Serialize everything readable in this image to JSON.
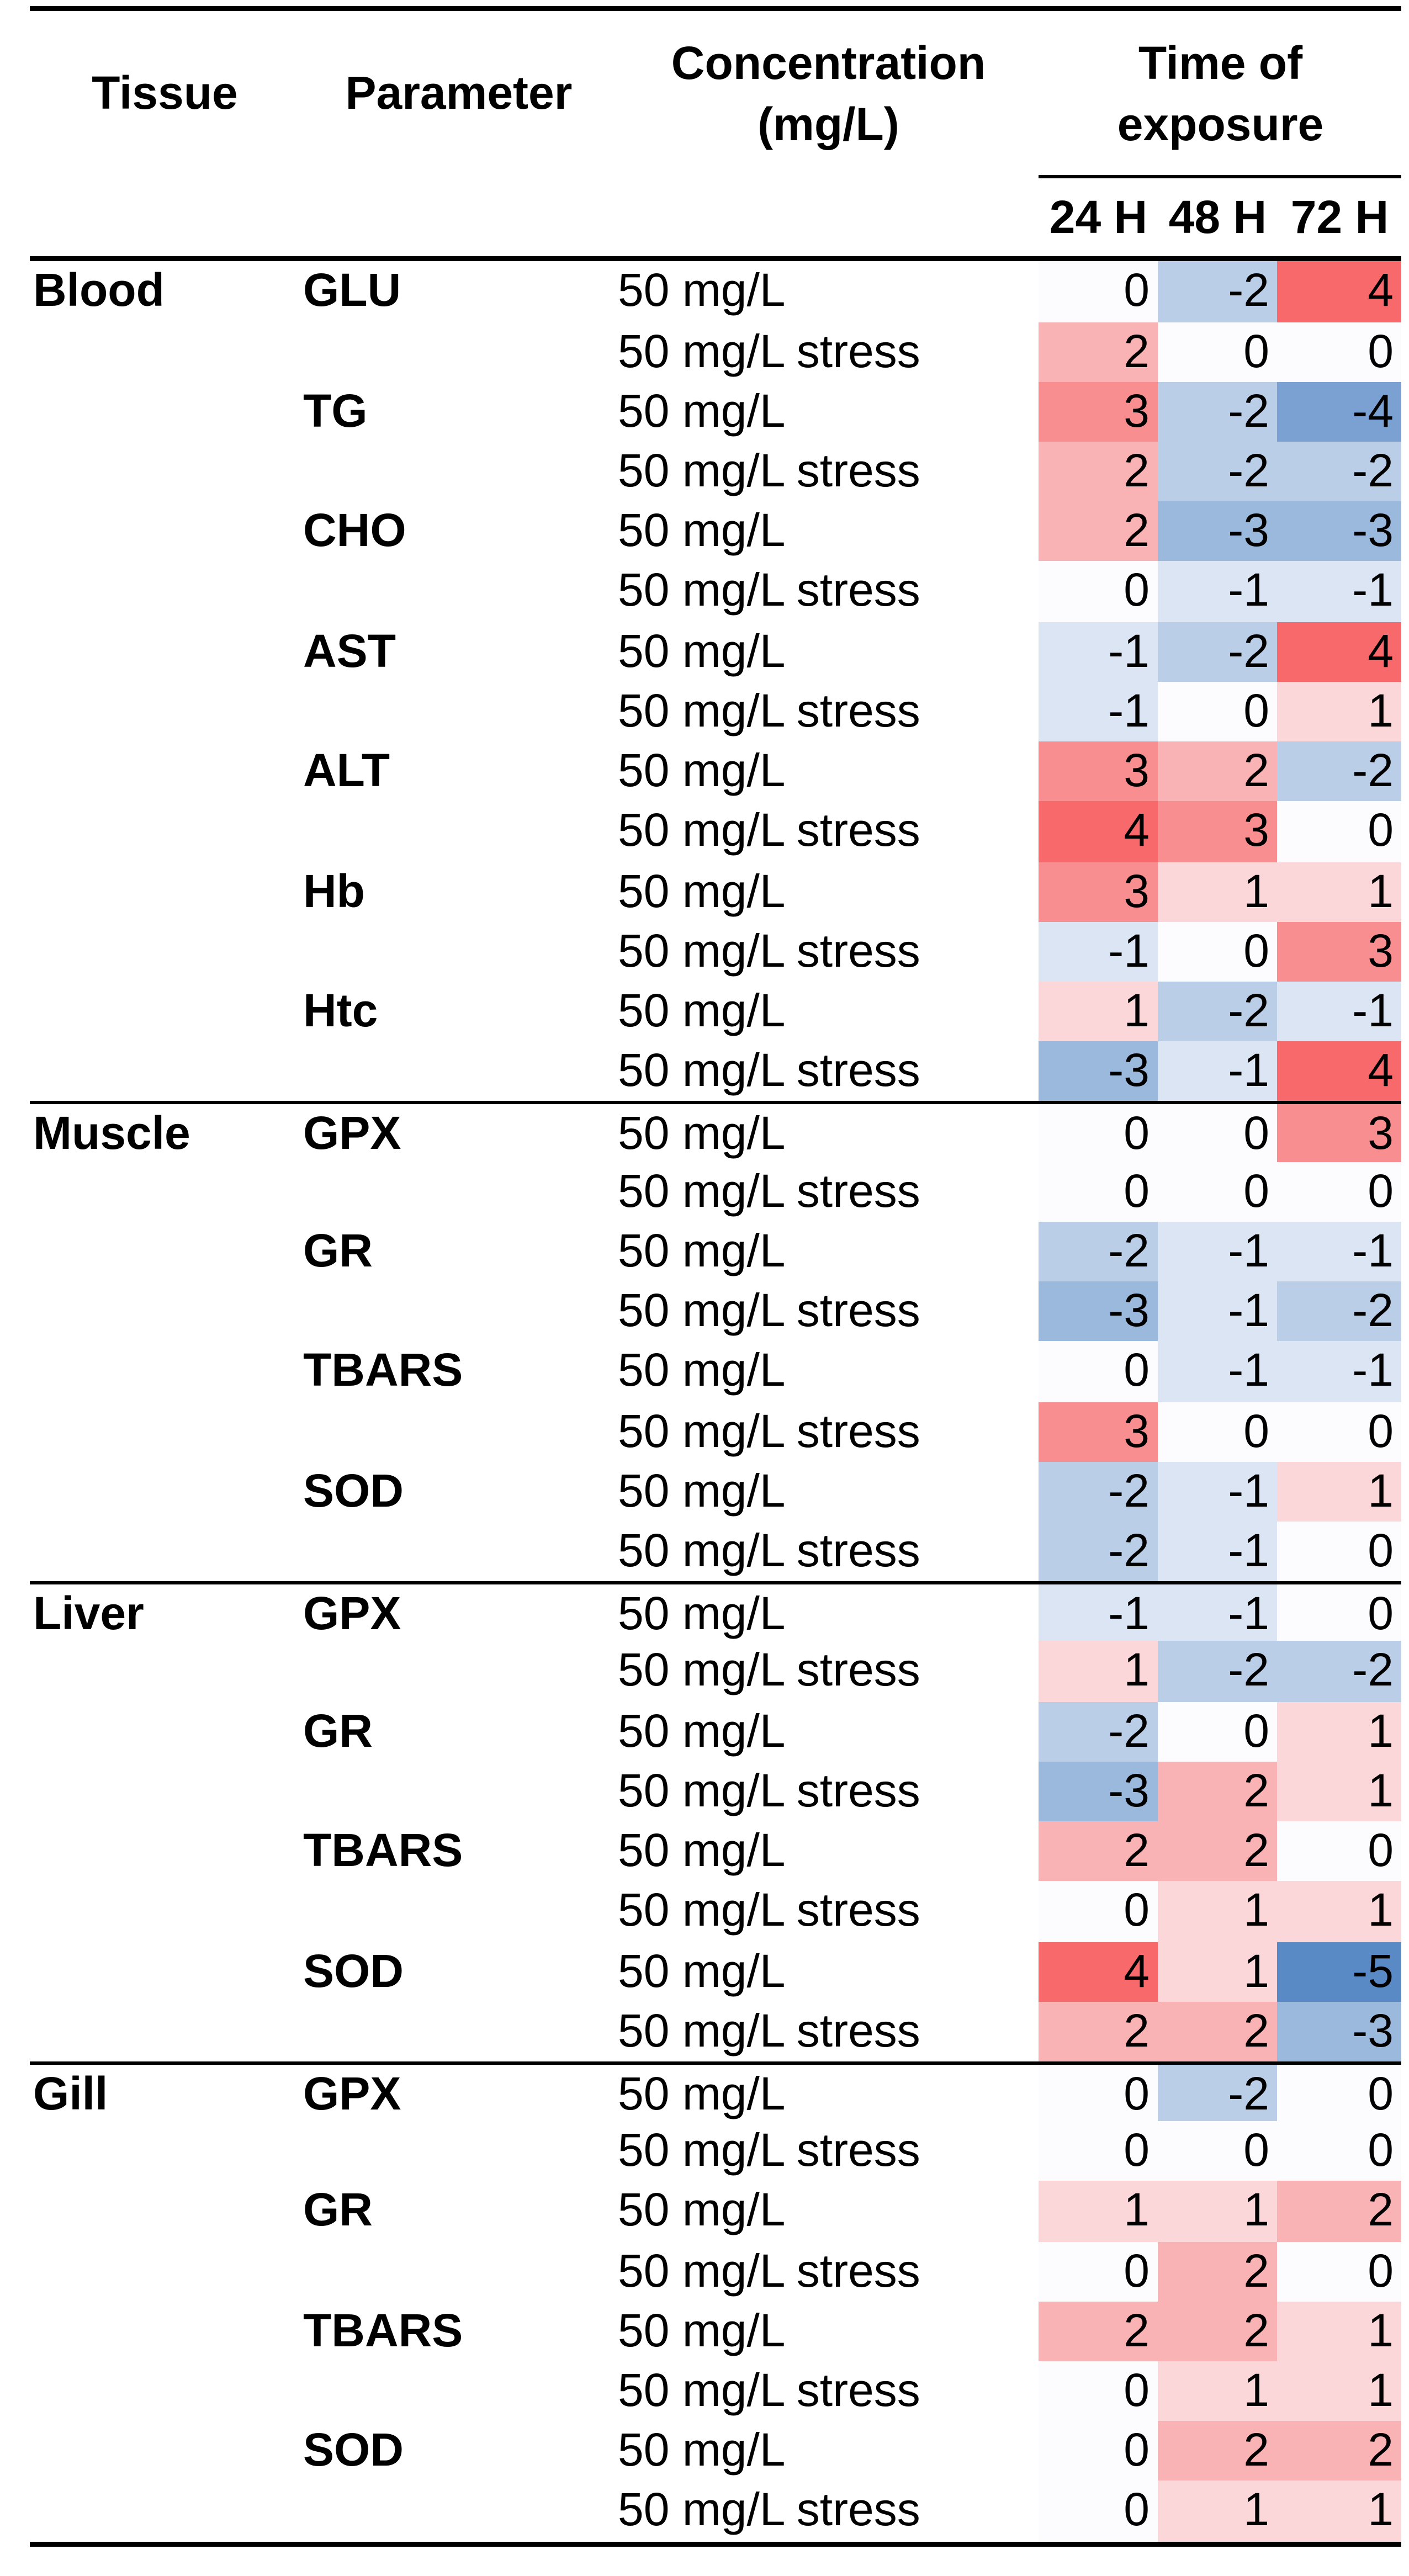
{
  "figure": {
    "columns": {
      "tissue": "Tissue",
      "parameter": "Parameter",
      "concentration_line1": "Concentration",
      "concentration_line2": "(mg/L)",
      "time_line1": "Time of",
      "time_line2": "exposure"
    },
    "time_subcolumns": [
      "24 H",
      "48 H",
      "72 H"
    ]
  },
  "heatmap_scale": {
    "max_color": "#F8696B",
    "mid_color": "#FCFCFF",
    "min_color": "#5A8AC6",
    "domain_max": 4,
    "domain_min": -5,
    "text_color": "#000000",
    "rule_color": "#000000"
  },
  "chart_data": {
    "type": "heatmap",
    "title": "",
    "columns": [
      "24 H",
      "48 H",
      "72 H"
    ],
    "value_range": [
      -5,
      4
    ],
    "legend_position": "none",
    "rows": [
      {
        "tissue": "Blood",
        "parameter": "GLU",
        "concentration": "50 mg/L",
        "values": [
          0,
          -2,
          4
        ]
      },
      {
        "tissue": "Blood",
        "parameter": "GLU",
        "concentration": "50 mg/L stress",
        "values": [
          2,
          0,
          0
        ]
      },
      {
        "tissue": "Blood",
        "parameter": "TG",
        "concentration": "50 mg/L",
        "values": [
          3,
          -2,
          -4
        ]
      },
      {
        "tissue": "Blood",
        "parameter": "TG",
        "concentration": "50 mg/L stress",
        "values": [
          2,
          -2,
          -2
        ]
      },
      {
        "tissue": "Blood",
        "parameter": "CHO",
        "concentration": "50 mg/L",
        "values": [
          2,
          -3,
          -3
        ]
      },
      {
        "tissue": "Blood",
        "parameter": "CHO",
        "concentration": "50 mg/L stress",
        "values": [
          0,
          -1,
          -1
        ]
      },
      {
        "tissue": "Blood",
        "parameter": "AST",
        "concentration": "50 mg/L",
        "values": [
          -1,
          -2,
          4
        ]
      },
      {
        "tissue": "Blood",
        "parameter": "AST",
        "concentration": "50 mg/L stress",
        "values": [
          -1,
          0,
          1
        ]
      },
      {
        "tissue": "Blood",
        "parameter": "ALT",
        "concentration": "50 mg/L",
        "values": [
          3,
          2,
          -2
        ]
      },
      {
        "tissue": "Blood",
        "parameter": "ALT",
        "concentration": "50 mg/L stress",
        "values": [
          4,
          3,
          0
        ]
      },
      {
        "tissue": "Blood",
        "parameter": "Hb",
        "concentration": "50 mg/L",
        "values": [
          3,
          1,
          1
        ]
      },
      {
        "tissue": "Blood",
        "parameter": "Hb",
        "concentration": "50 mg/L stress",
        "values": [
          -1,
          0,
          3
        ]
      },
      {
        "tissue": "Blood",
        "parameter": "Htc",
        "concentration": "50 mg/L",
        "values": [
          1,
          -2,
          -1
        ]
      },
      {
        "tissue": "Blood",
        "parameter": "Htc",
        "concentration": "50 mg/L stress",
        "values": [
          -3,
          -1,
          4
        ]
      },
      {
        "tissue": "Muscle",
        "parameter": "GPX",
        "concentration": "50 mg/L",
        "values": [
          0,
          0,
          3
        ]
      },
      {
        "tissue": "Muscle",
        "parameter": "GPX",
        "concentration": "50 mg/L stress",
        "values": [
          0,
          0,
          0
        ]
      },
      {
        "tissue": "Muscle",
        "parameter": "GR",
        "concentration": "50 mg/L",
        "values": [
          -2,
          -1,
          -1
        ]
      },
      {
        "tissue": "Muscle",
        "parameter": "GR",
        "concentration": "50 mg/L stress",
        "values": [
          -3,
          -1,
          -2
        ]
      },
      {
        "tissue": "Muscle",
        "parameter": "TBARS",
        "concentration": "50 mg/L",
        "values": [
          0,
          -1,
          -1
        ]
      },
      {
        "tissue": "Muscle",
        "parameter": "TBARS",
        "concentration": "50 mg/L stress",
        "values": [
          3,
          0,
          0
        ]
      },
      {
        "tissue": "Muscle",
        "parameter": "SOD",
        "concentration": "50 mg/L",
        "values": [
          -2,
          -1,
          1
        ]
      },
      {
        "tissue": "Muscle",
        "parameter": "SOD",
        "concentration": "50 mg/L stress",
        "values": [
          -2,
          -1,
          0
        ]
      },
      {
        "tissue": "Liver",
        "parameter": "GPX",
        "concentration": "50 mg/L",
        "values": [
          -1,
          -1,
          0
        ]
      },
      {
        "tissue": "Liver",
        "parameter": "GPX",
        "concentration": "50 mg/L stress",
        "values": [
          1,
          -2,
          -2
        ]
      },
      {
        "tissue": "Liver",
        "parameter": "GR",
        "concentration": "50 mg/L",
        "values": [
          -2,
          0,
          1
        ]
      },
      {
        "tissue": "Liver",
        "parameter": "GR",
        "concentration": "50 mg/L stress",
        "values": [
          -3,
          2,
          1
        ]
      },
      {
        "tissue": "Liver",
        "parameter": "TBARS",
        "concentration": "50 mg/L",
        "values": [
          2,
          2,
          0
        ]
      },
      {
        "tissue": "Liver",
        "parameter": "TBARS",
        "concentration": "50 mg/L stress",
        "values": [
          0,
          1,
          1
        ]
      },
      {
        "tissue": "Liver",
        "parameter": "SOD",
        "concentration": "50 mg/L",
        "values": [
          4,
          1,
          -5
        ]
      },
      {
        "tissue": "Liver",
        "parameter": "SOD",
        "concentration": "50 mg/L stress",
        "values": [
          2,
          2,
          -3
        ]
      },
      {
        "tissue": "Gill",
        "parameter": "GPX",
        "concentration": "50 mg/L",
        "values": [
          0,
          -2,
          0
        ]
      },
      {
        "tissue": "Gill",
        "parameter": "GPX",
        "concentration": "50 mg/L stress",
        "values": [
          0,
          0,
          0
        ]
      },
      {
        "tissue": "Gill",
        "parameter": "GR",
        "concentration": "50 mg/L",
        "values": [
          1,
          1,
          2
        ]
      },
      {
        "tissue": "Gill",
        "parameter": "GR",
        "concentration": "50 mg/L stress",
        "values": [
          0,
          2,
          0
        ]
      },
      {
        "tissue": "Gill",
        "parameter": "TBARS",
        "concentration": "50 mg/L",
        "values": [
          2,
          2,
          1
        ]
      },
      {
        "tissue": "Gill",
        "parameter": "TBARS",
        "concentration": "50 mg/L stress",
        "values": [
          0,
          1,
          1
        ]
      },
      {
        "tissue": "Gill",
        "parameter": "SOD",
        "concentration": "50 mg/L",
        "values": [
          0,
          2,
          2
        ]
      },
      {
        "tissue": "Gill",
        "parameter": "SOD",
        "concentration": "50 mg/L stress",
        "values": [
          0,
          1,
          1
        ]
      }
    ]
  }
}
